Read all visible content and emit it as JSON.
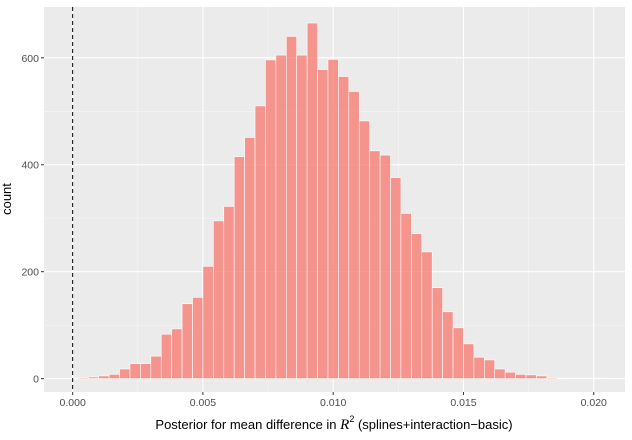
{
  "chart_data": {
    "type": "bar",
    "subtype": "histogram",
    "xlabel_prefix": "Posterior for mean difference in ",
    "xlabel_math": "R",
    "xlabel_superscript": "2",
    "xlabel_suffix": " (splines+interaction−basic)",
    "ylabel": "count",
    "xlim": [
      -0.0011,
      0.0212
    ],
    "ylim": [
      -25,
      695
    ],
    "x_ticks": [
      0.0,
      0.005,
      0.01,
      0.015,
      0.02
    ],
    "x_tick_labels": [
      "0.000",
      "0.005",
      "0.010",
      "0.015",
      "0.020"
    ],
    "y_ticks": [
      0,
      200,
      400,
      600
    ],
    "y_tick_labels": [
      "0",
      "200",
      "400",
      "600"
    ],
    "bin_width": 0.0004,
    "bin_starts": [
      0.0002,
      0.0006,
      0.001,
      0.0014,
      0.0018,
      0.0022,
      0.0026,
      0.003,
      0.0034,
      0.0038,
      0.0042,
      0.0046,
      0.005,
      0.0054,
      0.0058,
      0.0062,
      0.0066,
      0.007,
      0.0074,
      0.0078,
      0.0082,
      0.0086,
      0.009,
      0.0094,
      0.0098,
      0.0102,
      0.0106,
      0.011,
      0.0114,
      0.0118,
      0.0122,
      0.0126,
      0.013,
      0.0134,
      0.0138,
      0.0142,
      0.0146,
      0.015,
      0.0154,
      0.0158,
      0.0162,
      0.0166,
      0.017,
      0.0174,
      0.0178,
      0.0182,
      0.0186,
      0.019,
      0.0194,
      0.0198,
      0.0202
    ],
    "counts": [
      2,
      3,
      5,
      8,
      18,
      28,
      28,
      42,
      83,
      93,
      140,
      152,
      210,
      295,
      322,
      415,
      451,
      510,
      596,
      605,
      640,
      605,
      665,
      578,
      597,
      565,
      537,
      482,
      426,
      418,
      376,
      309,
      271,
      237,
      170,
      125,
      95,
      65,
      40,
      35,
      18,
      12,
      8,
      7,
      5,
      2,
      1,
      1,
      1,
      1,
      1
    ],
    "reference_line_x": 0.0,
    "reference_line_style": "dashed",
    "fill_color": "#F8766D",
    "fill_opacity": 0.75,
    "bar_outline_color": "#ffffff",
    "panel_background": "#EBEBEB",
    "grid": true,
    "legend": "none"
  }
}
